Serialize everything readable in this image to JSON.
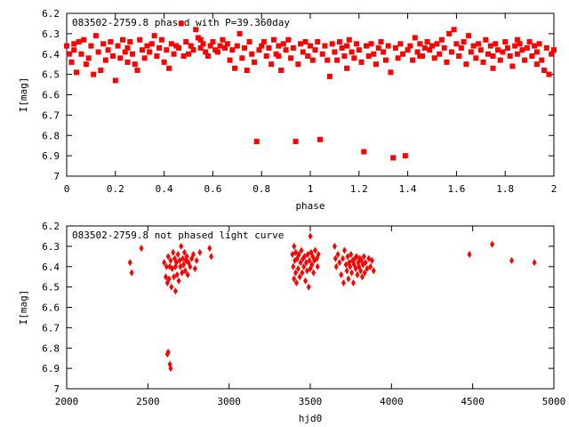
{
  "colors": {
    "points": "#ff0000",
    "frame": "#000000"
  },
  "chart_data": [
    {
      "type": "scatter",
      "title": "083502-2759.8 phased with P=39.360day",
      "xlabel": "phase",
      "ylabel": "I[mag]",
      "xlim": [
        0,
        2
      ],
      "ylim": [
        6.2,
        7.0
      ],
      "y_inverted": true,
      "grid": false,
      "marker": "square",
      "xticks": [
        "0",
        "0.2",
        "0.4",
        "0.6",
        "0.8",
        "1",
        "1.2",
        "1.4",
        "1.6",
        "1.8",
        "2"
      ],
      "yticks": [
        "6.2",
        "6.3",
        "6.4",
        "6.5",
        "6.6",
        "6.7",
        "6.8",
        "6.9",
        "7"
      ],
      "points": [
        [
          0.0,
          6.36
        ],
        [
          0.01,
          6.4
        ],
        [
          0.02,
          6.44
        ],
        [
          0.03,
          6.38
        ],
        [
          0.04,
          6.49
        ],
        [
          0.05,
          6.34
        ],
        [
          0.06,
          6.4
        ],
        [
          0.07,
          6.33
        ],
        [
          0.08,
          6.45
        ],
        [
          0.09,
          6.42
        ],
        [
          0.1,
          6.36
        ],
        [
          0.11,
          6.5
        ],
        [
          0.12,
          6.31
        ],
        [
          0.13,
          6.39
        ],
        [
          0.14,
          6.48
        ],
        [
          0.15,
          6.35
        ],
        [
          0.16,
          6.43
        ],
        [
          0.17,
          6.38
        ],
        [
          0.18,
          6.34
        ],
        [
          0.19,
          6.41
        ],
        [
          0.2,
          6.53
        ],
        [
          0.21,
          6.36
        ],
        [
          0.22,
          6.42
        ],
        [
          0.23,
          6.33
        ],
        [
          0.24,
          6.39
        ],
        [
          0.25,
          6.37
        ],
        [
          0.26,
          6.34
        ],
        [
          0.27,
          6.4
        ],
        [
          0.28,
          6.45
        ],
        [
          0.29,
          6.48
        ],
        [
          0.3,
          6.33
        ],
        [
          0.31,
          6.38
        ],
        [
          0.32,
          6.42
        ],
        [
          0.33,
          6.36
        ],
        [
          0.34,
          6.39
        ],
        [
          0.35,
          6.35
        ],
        [
          0.36,
          6.31
        ],
        [
          0.37,
          6.41
        ],
        [
          0.38,
          6.37
        ],
        [
          0.39,
          6.33
        ],
        [
          0.4,
          6.44
        ],
        [
          0.41,
          6.38
        ],
        [
          0.42,
          6.47
        ],
        [
          0.43,
          6.35
        ],
        [
          0.44,
          6.4
        ],
        [
          0.45,
          6.36
        ],
        [
          0.46,
          6.37
        ],
        [
          0.47,
          6.25
        ],
        [
          0.48,
          6.41
        ],
        [
          0.49,
          6.34
        ],
        [
          0.5,
          6.4
        ],
        [
          0.51,
          6.36
        ],
        [
          0.52,
          6.38
        ],
        [
          0.53,
          6.28
        ],
        [
          0.54,
          6.32
        ],
        [
          0.55,
          6.37
        ],
        [
          0.56,
          6.35
        ],
        [
          0.57,
          6.39
        ],
        [
          0.58,
          6.41
        ],
        [
          0.59,
          6.36
        ],
        [
          0.6,
          6.34
        ],
        [
          0.61,
          6.38
        ],
        [
          0.62,
          6.39
        ],
        [
          0.63,
          6.36
        ],
        [
          0.64,
          6.33
        ],
        [
          0.65,
          6.37
        ],
        [
          0.66,
          6.35
        ],
        [
          0.67,
          6.43
        ],
        [
          0.68,
          6.38
        ],
        [
          0.69,
          6.47
        ],
        [
          0.7,
          6.36
        ],
        [
          0.71,
          6.3
        ],
        [
          0.72,
          6.42
        ],
        [
          0.73,
          6.37
        ],
        [
          0.74,
          6.48
        ],
        [
          0.75,
          6.34
        ],
        [
          0.76,
          6.4
        ],
        [
          0.77,
          6.44
        ],
        [
          0.78,
          6.83
        ],
        [
          0.79,
          6.38
        ],
        [
          0.8,
          6.36
        ],
        [
          0.81,
          6.34
        ],
        [
          0.82,
          6.41
        ],
        [
          0.83,
          6.37
        ],
        [
          0.84,
          6.45
        ],
        [
          0.85,
          6.33
        ],
        [
          0.86,
          6.4
        ],
        [
          0.87,
          6.36
        ],
        [
          0.88,
          6.48
        ],
        [
          0.89,
          6.35
        ],
        [
          0.9,
          6.38
        ],
        [
          0.91,
          6.33
        ],
        [
          0.92,
          6.42
        ],
        [
          0.93,
          6.37
        ],
        [
          0.94,
          6.83
        ],
        [
          0.95,
          6.45
        ],
        [
          0.96,
          6.35
        ],
        [
          0.97,
          6.39
        ],
        [
          0.98,
          6.34
        ],
        [
          0.99,
          6.41
        ],
        [
          1.0,
          6.36
        ],
        [
          1.01,
          6.43
        ],
        [
          1.02,
          6.38
        ],
        [
          1.03,
          6.34
        ],
        [
          1.04,
          6.82
        ],
        [
          1.05,
          6.4
        ],
        [
          1.06,
          6.36
        ],
        [
          1.07,
          6.43
        ],
        [
          1.08,
          6.51
        ],
        [
          1.09,
          6.35
        ],
        [
          1.1,
          6.39
        ],
        [
          1.11,
          6.43
        ],
        [
          1.12,
          6.34
        ],
        [
          1.13,
          6.37
        ],
        [
          1.14,
          6.41
        ],
        [
          1.15,
          6.36
        ],
        [
          1.16,
          6.33
        ],
        [
          1.17,
          6.39
        ],
        [
          1.18,
          6.42
        ],
        [
          1.19,
          6.35
        ],
        [
          1.2,
          6.38
        ],
        [
          1.21,
          6.44
        ],
        [
          1.22,
          6.88
        ],
        [
          1.23,
          6.36
        ],
        [
          1.24,
          6.41
        ],
        [
          1.25,
          6.35
        ],
        [
          1.26,
          6.4
        ],
        [
          1.27,
          6.45
        ],
        [
          1.28,
          6.37
        ],
        [
          1.29,
          6.34
        ],
        [
          1.3,
          6.39
        ],
        [
          1.31,
          6.43
        ],
        [
          1.32,
          6.36
        ],
        [
          1.33,
          6.49
        ],
        [
          1.34,
          6.91
        ],
        [
          1.35,
          6.37
        ],
        [
          1.36,
          6.42
        ],
        [
          1.37,
          6.35
        ],
        [
          1.38,
          6.4
        ],
        [
          1.39,
          6.9
        ],
        [
          1.4,
          6.38
        ],
        [
          1.41,
          6.36
        ],
        [
          1.42,
          6.43
        ],
        [
          1.43,
          6.32
        ],
        [
          1.44,
          6.39
        ],
        [
          1.45,
          6.35
        ],
        [
          1.46,
          6.41
        ],
        [
          1.47,
          6.37
        ],
        [
          1.48,
          6.34
        ],
        [
          1.49,
          6.38
        ],
        [
          1.5,
          6.36
        ],
        [
          1.51,
          6.42
        ],
        [
          1.52,
          6.35
        ],
        [
          1.53,
          6.4
        ],
        [
          1.54,
          6.33
        ],
        [
          1.55,
          6.37
        ],
        [
          1.56,
          6.44
        ],
        [
          1.57,
          6.3
        ],
        [
          1.58,
          6.39
        ],
        [
          1.59,
          6.28
        ],
        [
          1.6,
          6.35
        ],
        [
          1.61,
          6.41
        ],
        [
          1.62,
          6.37
        ],
        [
          1.63,
          6.34
        ],
        [
          1.64,
          6.45
        ],
        [
          1.65,
          6.31
        ],
        [
          1.66,
          6.39
        ],
        [
          1.67,
          6.36
        ],
        [
          1.68,
          6.42
        ],
        [
          1.69,
          6.35
        ],
        [
          1.7,
          6.38
        ],
        [
          1.71,
          6.44
        ],
        [
          1.72,
          6.33
        ],
        [
          1.73,
          6.4
        ],
        [
          1.74,
          6.36
        ],
        [
          1.75,
          6.41
        ],
        [
          1.76,
          6.35
        ],
        [
          1.77,
          6.38
        ],
        [
          1.78,
          6.43
        ],
        [
          1.79,
          6.39
        ],
        [
          1.8,
          6.34
        ],
        [
          1.81,
          6.37
        ],
        [
          1.82,
          6.41
        ],
        [
          1.83,
          6.46
        ],
        [
          1.84,
          6.36
        ],
        [
          1.85,
          6.4
        ],
        [
          1.86,
          6.35
        ],
        [
          1.87,
          6.38
        ],
        [
          1.88,
          6.43
        ],
        [
          1.89,
          6.37
        ],
        [
          1.9,
          6.34
        ],
        [
          1.91,
          6.41
        ],
        [
          1.92,
          6.36
        ],
        [
          1.93,
          6.39
        ],
        [
          1.94,
          6.35
        ],
        [
          1.95,
          6.43
        ],
        [
          1.96,
          6.48
        ],
        [
          1.97,
          6.37
        ],
        [
          1.98,
          6.5
        ],
        [
          1.99,
          6.4
        ],
        [
          2.0,
          6.38
        ],
        [
          0.03,
          6.35
        ],
        [
          0.25,
          6.44
        ],
        [
          0.55,
          6.33
        ],
        [
          0.87,
          6.41
        ],
        [
          1.15,
          6.47
        ],
        [
          1.45,
          6.41
        ],
        [
          1.75,
          6.47
        ],
        [
          1.85,
          6.33
        ],
        [
          1.93,
          6.45
        ]
      ]
    },
    {
      "type": "scatter",
      "title": "083502-2759.8 not phased light curve",
      "xlabel": "hjd0",
      "ylabel": "I[mag]",
      "xlim": [
        2000,
        5000
      ],
      "ylim": [
        6.2,
        7.0
      ],
      "y_inverted": true,
      "grid": false,
      "marker": "diamond",
      "xticks": [
        "2000",
        "2500",
        "3000",
        "3500",
        "4000",
        "4500",
        "5000"
      ],
      "yticks": [
        "6.2",
        "6.3",
        "6.4",
        "6.5",
        "6.6",
        "6.7",
        "6.8",
        "6.9",
        "7"
      ],
      "points": [
        [
          2390,
          6.38
        ],
        [
          2400,
          6.43
        ],
        [
          2460,
          6.31
        ],
        [
          2600,
          6.38
        ],
        [
          2610,
          6.45
        ],
        [
          2615,
          6.4
        ],
        [
          2620,
          6.48
        ],
        [
          2620,
          6.83
        ],
        [
          2625,
          6.82
        ],
        [
          2625,
          6.35
        ],
        [
          2630,
          6.46
        ],
        [
          2635,
          6.88
        ],
        [
          2635,
          6.4
        ],
        [
          2640,
          6.9
        ],
        [
          2640,
          6.37
        ],
        [
          2645,
          6.5
        ],
        [
          2650,
          6.41
        ],
        [
          2655,
          6.33
        ],
        [
          2660,
          6.45
        ],
        [
          2665,
          6.36
        ],
        [
          2670,
          6.52
        ],
        [
          2670,
          6.4
        ],
        [
          2675,
          6.38
        ],
        [
          2680,
          6.44
        ],
        [
          2685,
          6.34
        ],
        [
          2690,
          6.47
        ],
        [
          2695,
          6.37
        ],
        [
          2700,
          6.4
        ],
        [
          2705,
          6.3
        ],
        [
          2710,
          6.43
        ],
        [
          2715,
          6.36
        ],
        [
          2720,
          6.39
        ],
        [
          2725,
          6.33
        ],
        [
          2730,
          6.42
        ],
        [
          2735,
          6.37
        ],
        [
          2740,
          6.35
        ],
        [
          2745,
          6.44
        ],
        [
          2750,
          6.38
        ],
        [
          2760,
          6.4
        ],
        [
          2770,
          6.36
        ],
        [
          2780,
          6.34
        ],
        [
          2790,
          6.41
        ],
        [
          2800,
          6.37
        ],
        [
          2820,
          6.33
        ],
        [
          2880,
          6.31
        ],
        [
          2890,
          6.35
        ],
        [
          3390,
          6.34
        ],
        [
          3395,
          6.4
        ],
        [
          3400,
          6.46
        ],
        [
          3400,
          6.3
        ],
        [
          3405,
          6.37
        ],
        [
          3410,
          6.43
        ],
        [
          3410,
          6.33
        ],
        [
          3415,
          6.48
        ],
        [
          3420,
          6.36
        ],
        [
          3425,
          6.41
        ],
        [
          3430,
          6.34
        ],
        [
          3435,
          6.45
        ],
        [
          3440,
          6.38
        ],
        [
          3445,
          6.32
        ],
        [
          3450,
          6.43
        ],
        [
          3455,
          6.36
        ],
        [
          3460,
          6.4
        ],
        [
          3465,
          6.35
        ],
        [
          3470,
          6.47
        ],
        [
          3475,
          6.38
        ],
        [
          3480,
          6.42
        ],
        [
          3485,
          6.34
        ],
        [
          3490,
          6.5
        ],
        [
          3495,
          6.37
        ],
        [
          3500,
          6.25
        ],
        [
          3500,
          6.41
        ],
        [
          3505,
          6.33
        ],
        [
          3510,
          6.39
        ],
        [
          3515,
          6.35
        ],
        [
          3520,
          6.43
        ],
        [
          3525,
          6.37
        ],
        [
          3530,
          6.32
        ],
        [
          3540,
          6.36
        ],
        [
          3545,
          6.4
        ],
        [
          3550,
          6.34
        ],
        [
          3650,
          6.3
        ],
        [
          3655,
          6.36
        ],
        [
          3660,
          6.4
        ],
        [
          3670,
          6.34
        ],
        [
          3680,
          6.38
        ],
        [
          3690,
          6.44
        ],
        [
          3700,
          6.36
        ],
        [
          3705,
          6.48
        ],
        [
          3710,
          6.32
        ],
        [
          3720,
          6.39
        ],
        [
          3725,
          6.42
        ],
        [
          3730,
          6.35
        ],
        [
          3735,
          6.46
        ],
        [
          3740,
          6.38
        ],
        [
          3745,
          6.4
        ],
        [
          3750,
          6.34
        ],
        [
          3755,
          6.43
        ],
        [
          3760,
          6.37
        ],
        [
          3765,
          6.48
        ],
        [
          3770,
          6.39
        ],
        [
          3775,
          6.36
        ],
        [
          3780,
          6.41
        ],
        [
          3785,
          6.35
        ],
        [
          3790,
          6.44
        ],
        [
          3795,
          6.38
        ],
        [
          3800,
          6.4
        ],
        [
          3805,
          6.36
        ],
        [
          3810,
          6.42
        ],
        [
          3815,
          6.37
        ],
        [
          3820,
          6.45
        ],
        [
          3825,
          6.39
        ],
        [
          3830,
          6.35
        ],
        [
          3835,
          6.43
        ],
        [
          3840,
          6.38
        ],
        [
          3850,
          6.41
        ],
        [
          3860,
          6.36
        ],
        [
          3870,
          6.4
        ],
        [
          3880,
          6.37
        ],
        [
          3890,
          6.42
        ],
        [
          4480,
          6.34
        ],
        [
          4620,
          6.29
        ],
        [
          4740,
          6.37
        ],
        [
          4880,
          6.38
        ]
      ]
    }
  ]
}
